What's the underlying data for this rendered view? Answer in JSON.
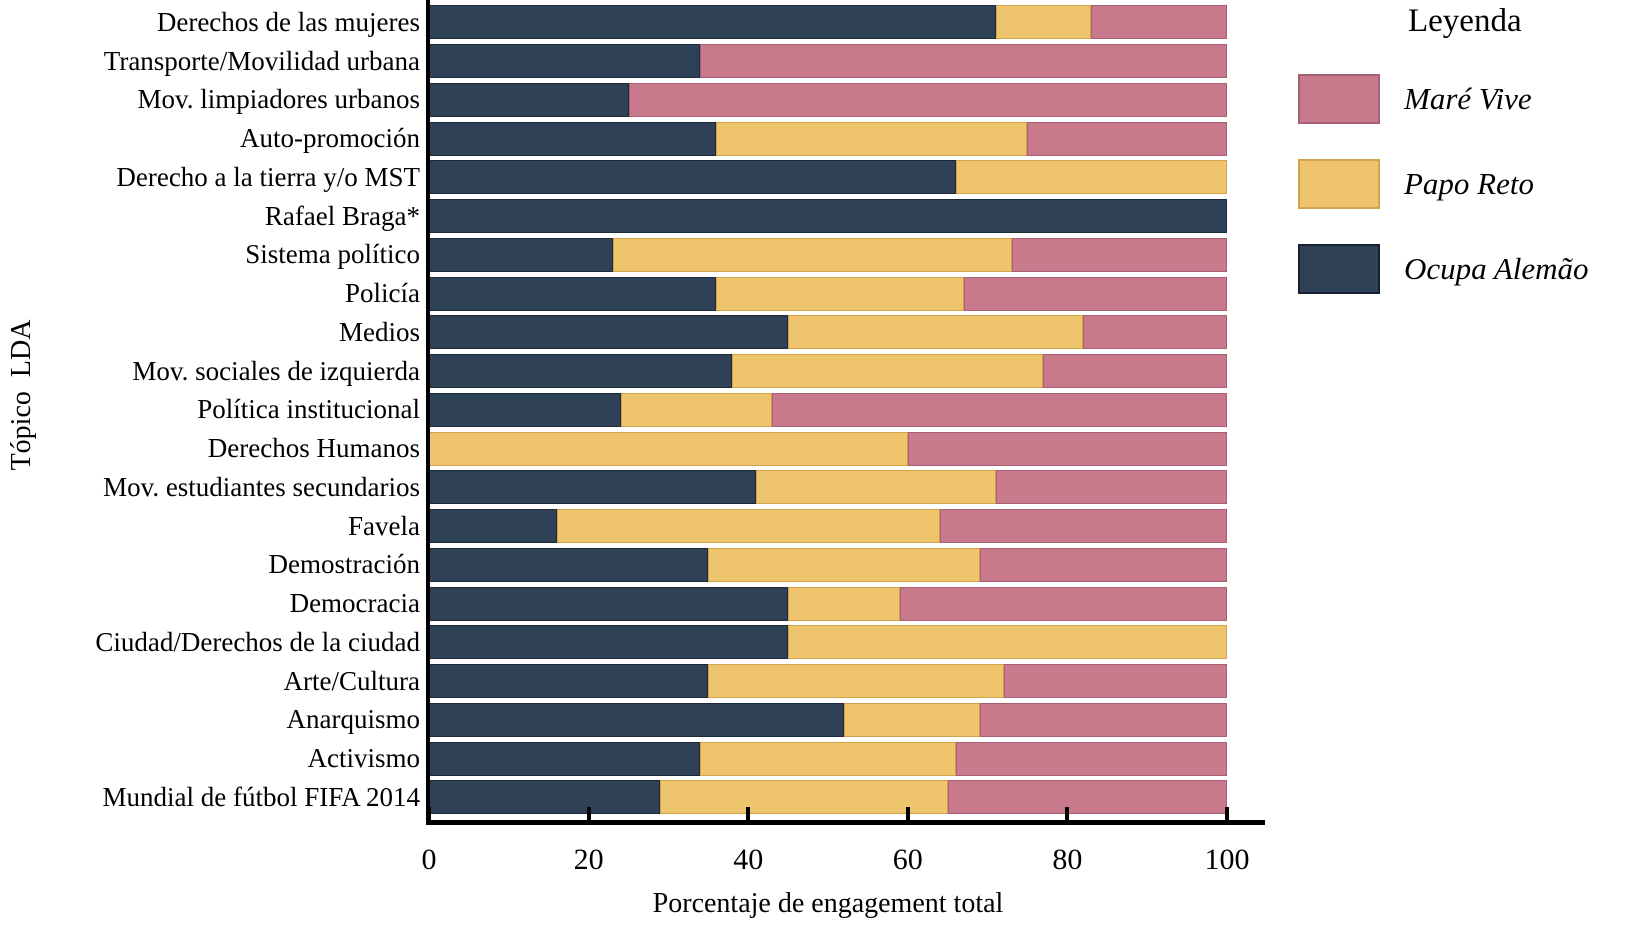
{
  "chart_data": {
    "type": "bar",
    "orientation": "horizontal-stacked",
    "xlabel": "Porcentaje de engagement total",
    "ylabel": "Tópico  LDA",
    "xlim": [
      0,
      100
    ],
    "xticks": [
      0,
      20,
      40,
      60,
      80,
      100
    ],
    "grid": false,
    "categories": [
      "Derechos de las mujeres",
      "Transporte/Movilidad urbana",
      "Mov. limpiadores urbanos",
      "Auto-promoción",
      "Derecho a la tierra y/o MST",
      "Rafael Braga*",
      "Sistema político",
      "Policía",
      "Medios",
      "Mov. sociales de izquierda",
      "Política institucional",
      "Derechos Humanos",
      "Mov. estudiantes secundarios",
      "Favela",
      "Demostración",
      "Democracia",
      "Ciudad/Derechos de la ciudad",
      "Arte/Cultura",
      "Anarquismo",
      "Activismo",
      "Mundial de fútbol FIFA 2014"
    ],
    "series": [
      {
        "name": "Ocupa Alemão",
        "color": "#2e4157",
        "values": [
          71,
          34,
          25,
          36,
          66,
          100,
          23,
          36,
          45,
          38,
          24,
          0,
          41,
          16,
          35,
          45,
          45,
          35,
          52,
          34,
          29
        ]
      },
      {
        "name": "Papo Reto",
        "color": "#eec46d",
        "values": [
          12,
          0,
          0,
          39,
          34,
          0,
          50,
          31,
          37,
          39,
          19,
          60,
          30,
          48,
          34,
          14,
          55,
          37,
          17,
          32,
          36
        ]
      },
      {
        "name": "Maré Vive",
        "color": "#c8798c",
        "values": [
          17,
          66,
          75,
          25,
          0,
          0,
          27,
          33,
          18,
          23,
          57,
          40,
          29,
          36,
          31,
          41,
          0,
          28,
          31,
          34,
          35
        ]
      }
    ],
    "legend": {
      "title": "Leyenda",
      "position": "top-right",
      "entries": [
        {
          "label": "Maré Vive",
          "color": "#c8798c"
        },
        {
          "label": "Papo Reto",
          "color": "#eec46d"
        },
        {
          "label": "Ocupa Alemão",
          "color": "#2e4157"
        }
      ]
    }
  }
}
